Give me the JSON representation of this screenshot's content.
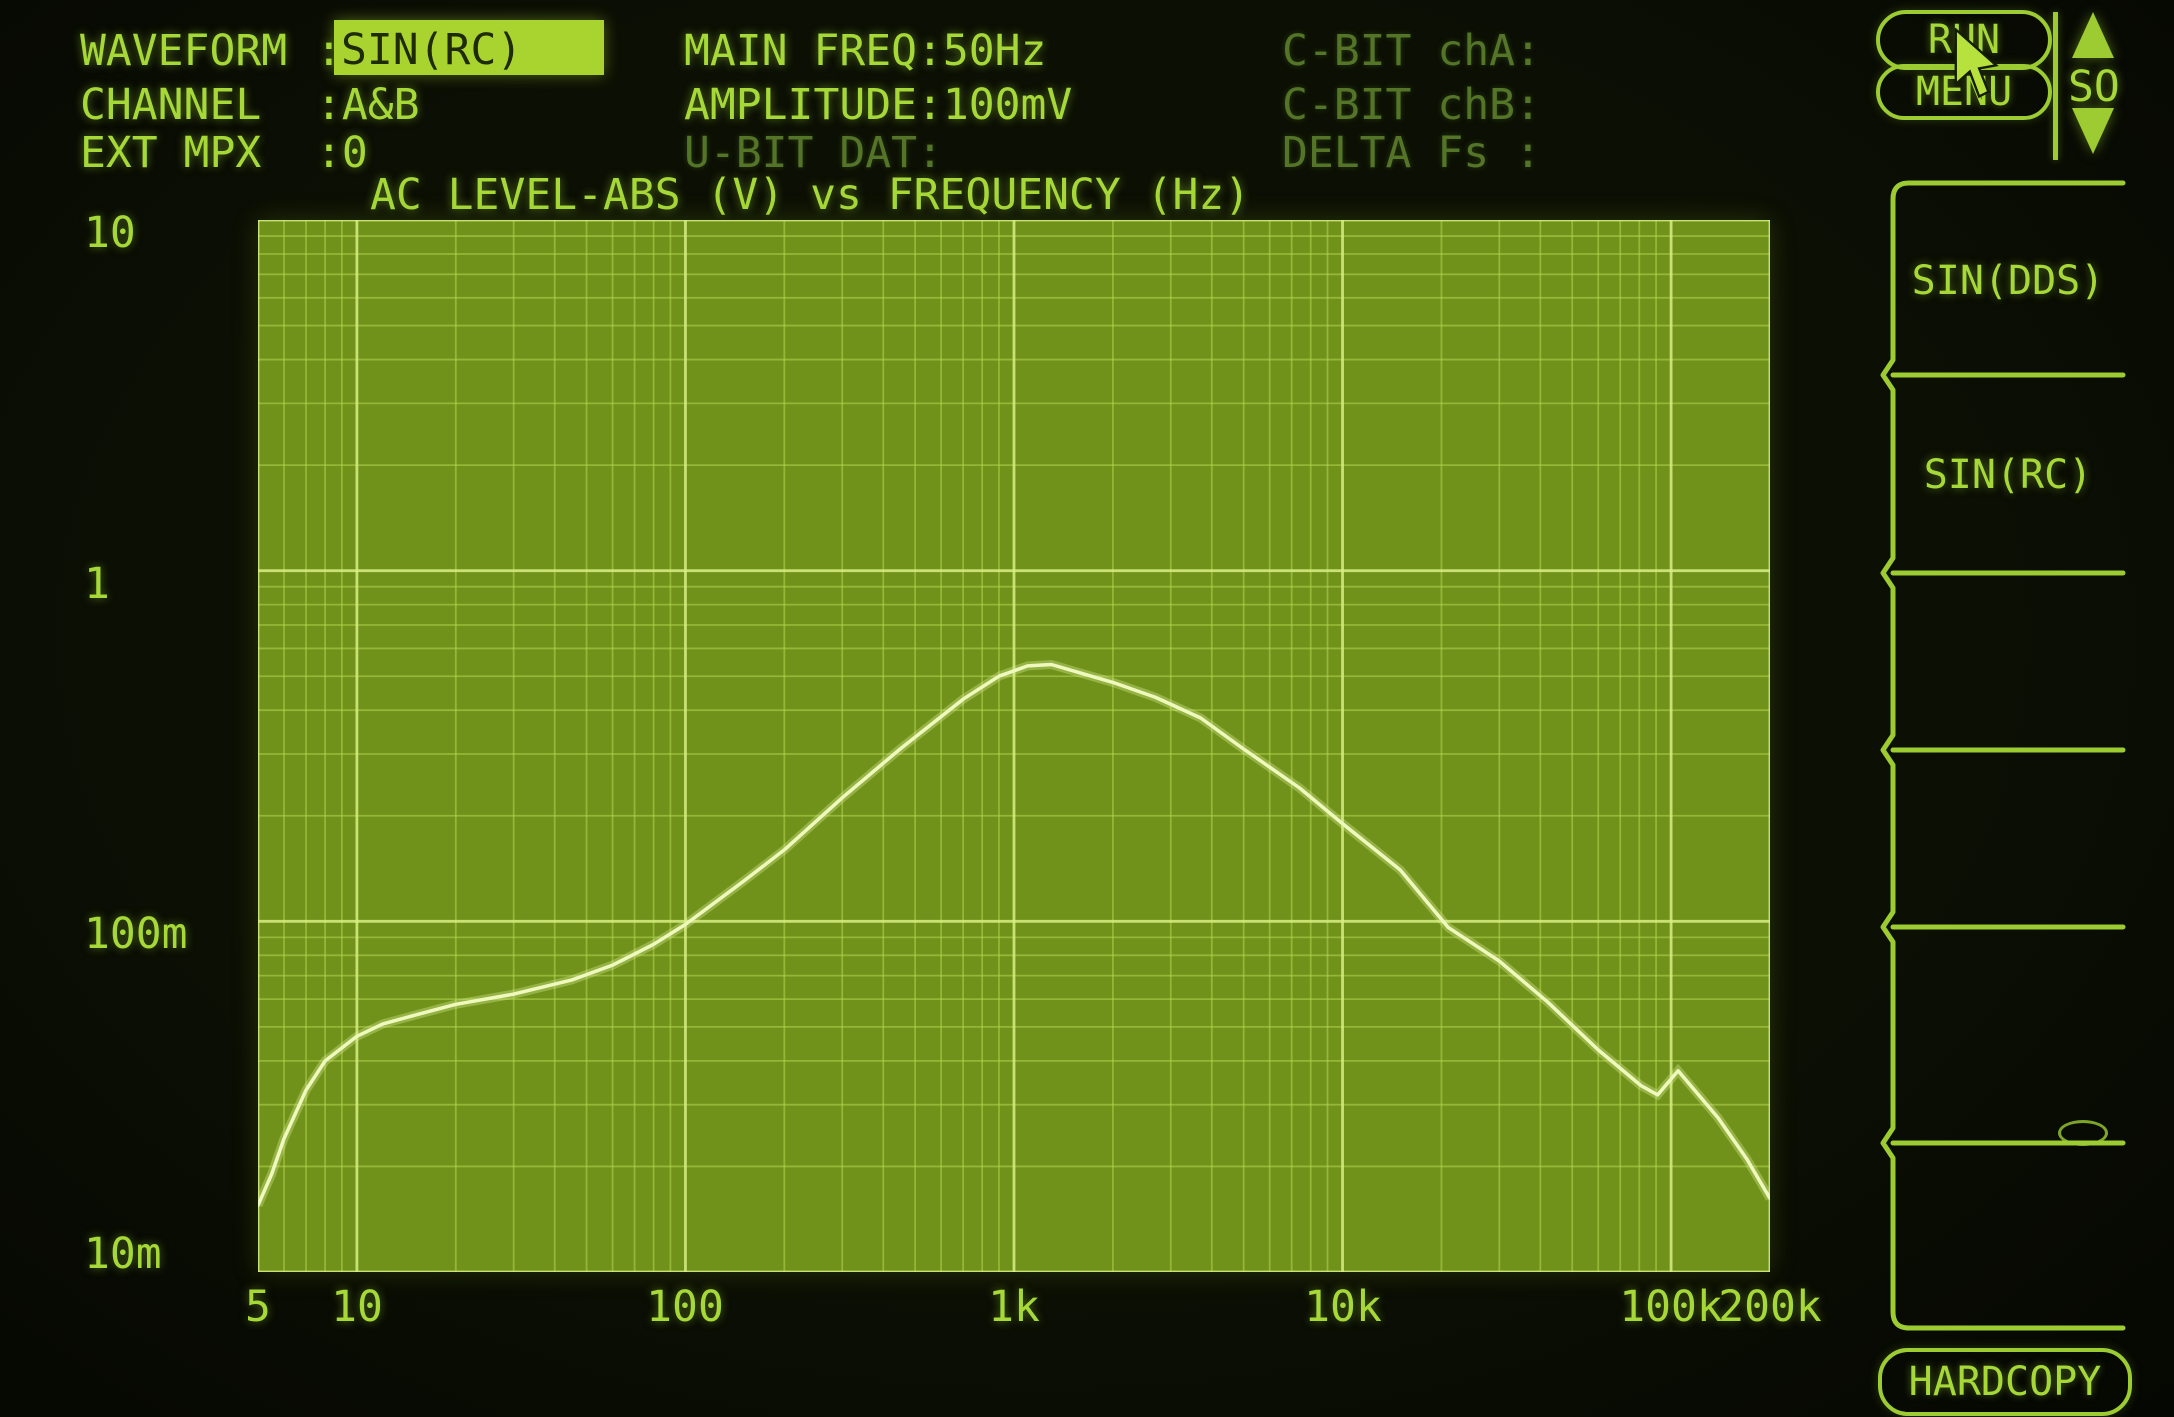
{
  "header": {
    "waveform": {
      "label": "WAVEFORM",
      "colon": ":",
      "value": "SIN(RC)"
    },
    "channel": {
      "label": "CHANNEL",
      "value": ":A&B"
    },
    "ext_mpx": {
      "label": "EXT MPX",
      "value": ":0"
    },
    "main_freq": "MAIN FREQ:50Hz",
    "amplitude": "AMPLITUDE:100mV",
    "u_bit_dat": "U-BIT DAT:",
    "c_bit_cha": "C-BIT chA:",
    "c_bit_chb": "C-BIT chB:",
    "delta_fs": "DELTA Fs :"
  },
  "buttons": {
    "run": "RUN",
    "menu": "MENU",
    "updown_label": "SO",
    "hardcopy": "HARDCOPY"
  },
  "softkeys": [
    {
      "label": "SIN(DDS)"
    },
    {
      "label": "SIN(RC)"
    },
    {
      "label": ""
    },
    {
      "label": ""
    },
    {
      "label": ""
    },
    {
      "label": ""
    }
  ],
  "colors": {
    "screen_bg": "#0b0e04",
    "text_bright": "#a6d937",
    "text_dim": "#547427",
    "highlight_bg": "#a9d32f",
    "highlight_text": "#1e2b06",
    "plot_bg": "#70921b",
    "grid_minor": "#b9d952",
    "grid_major": "#d8ee84",
    "curve": "#eff9bd",
    "outline": "#9ccb32"
  },
  "chart_data": {
    "type": "line",
    "title": "AC LEVEL-ABS (V) vs FREQUENCY (Hz)",
    "x_scale": "log",
    "y_scale": "log",
    "xlim": [
      5,
      200000
    ],
    "ylim": [
      0.01,
      10
    ],
    "xlabel": "FREQUENCY (Hz)",
    "ylabel": "AC LEVEL-ABS (V)",
    "grid": true,
    "x_ticks": [
      {
        "f": 5,
        "label": "5"
      },
      {
        "f": 10,
        "label": "10"
      },
      {
        "f": 100,
        "label": "100"
      },
      {
        "f": 1000,
        "label": "1k"
      },
      {
        "f": 10000,
        "label": "10k"
      },
      {
        "f": 100000,
        "label": "100k"
      },
      {
        "f": 200000,
        "label": "200k"
      }
    ],
    "y_ticks": [
      {
        "v": 10,
        "label": "10"
      },
      {
        "v": 1,
        "label": "1"
      },
      {
        "v": 0.1,
        "label": "100m"
      },
      {
        "v": 0.01,
        "label": "10m"
      }
    ],
    "series": [
      {
        "points": [
          [
            5,
            0.0155
          ],
          [
            5.5,
            0.019
          ],
          [
            6,
            0.024
          ],
          [
            7,
            0.033
          ],
          [
            8,
            0.04
          ],
          [
            10,
            0.047
          ],
          [
            12,
            0.051
          ],
          [
            15,
            0.054
          ],
          [
            20,
            0.058
          ],
          [
            30,
            0.062
          ],
          [
            45,
            0.068
          ],
          [
            60,
            0.075
          ],
          [
            80,
            0.086
          ],
          [
            100,
            0.098
          ],
          [
            150,
            0.13
          ],
          [
            200,
            0.16
          ],
          [
            300,
            0.225
          ],
          [
            450,
            0.31
          ],
          [
            700,
            0.43
          ],
          [
            900,
            0.5
          ],
          [
            1100,
            0.535
          ],
          [
            1300,
            0.54
          ],
          [
            1600,
            0.51
          ],
          [
            2000,
            0.48
          ],
          [
            2700,
            0.435
          ],
          [
            3700,
            0.38
          ],
          [
            5000,
            0.31
          ],
          [
            7400,
            0.24
          ],
          [
            10000,
            0.19
          ],
          [
            15000,
            0.14
          ],
          [
            21000,
            0.096
          ],
          [
            30000,
            0.077
          ],
          [
            42000,
            0.059
          ],
          [
            60000,
            0.043
          ],
          [
            81000,
            0.034
          ],
          [
            91000,
            0.032
          ],
          [
            105000,
            0.0375
          ],
          [
            139000,
            0.0275
          ],
          [
            170000,
            0.021
          ],
          [
            200000,
            0.0162
          ]
        ]
      }
    ]
  }
}
